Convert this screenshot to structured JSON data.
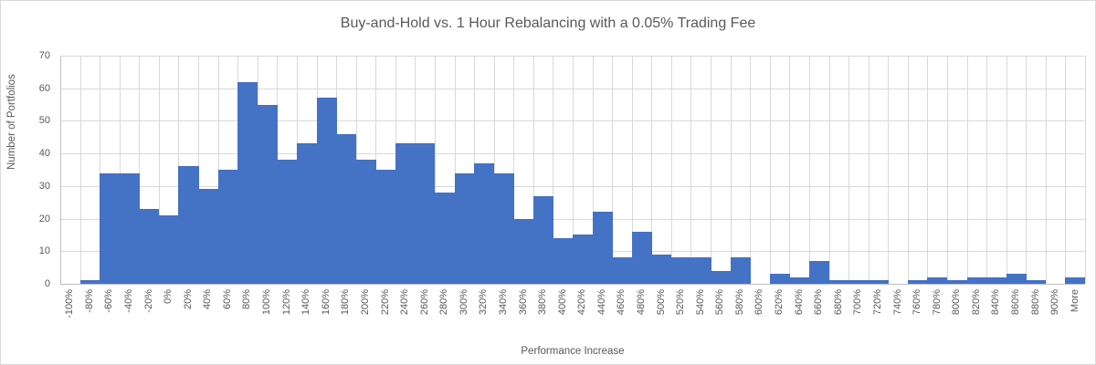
{
  "chart_data": {
    "type": "bar",
    "title": "Buy-and-Hold vs. 1 Hour Rebalancing with a 0.05% Trading Fee",
    "xlabel": "Performance Increase",
    "ylabel": "Number of Portfolios",
    "ylim": [
      0,
      70
    ],
    "ytick_step": 10,
    "yticks": [
      "0",
      "10",
      "20",
      "30",
      "40",
      "50",
      "60",
      "70"
    ],
    "grid": true,
    "legend_position": "none",
    "bar_color": "#4472C4",
    "gridline_color": "#D9D9D9",
    "axis_line_color": "#BFBFBF",
    "text_color": "#595959",
    "categories": [
      "-100%",
      "-80%",
      "-60%",
      "-40%",
      "-20%",
      "0%",
      "20%",
      "40%",
      "60%",
      "80%",
      "100%",
      "120%",
      "140%",
      "160%",
      "180%",
      "200%",
      "220%",
      "240%",
      "260%",
      "280%",
      "300%",
      "320%",
      "340%",
      "360%",
      "380%",
      "400%",
      "420%",
      "440%",
      "460%",
      "480%",
      "500%",
      "520%",
      "540%",
      "560%",
      "580%",
      "600%",
      "620%",
      "640%",
      "660%",
      "680%",
      "700%",
      "720%",
      "740%",
      "760%",
      "780%",
      "800%",
      "820%",
      "840%",
      "860%",
      "880%",
      "900%",
      "More"
    ],
    "values": [
      0,
      1,
      34,
      34,
      23,
      21,
      36,
      29,
      35,
      62,
      55,
      38,
      43,
      57,
      46,
      38,
      35,
      43,
      43,
      28,
      34,
      37,
      34,
      20,
      27,
      14,
      15,
      22,
      8,
      16,
      9,
      8,
      8,
      4,
      8,
      0,
      3,
      2,
      7,
      1,
      1,
      1,
      0,
      1,
      2,
      1,
      2,
      2,
      3,
      1,
      0,
      2
    ]
  }
}
